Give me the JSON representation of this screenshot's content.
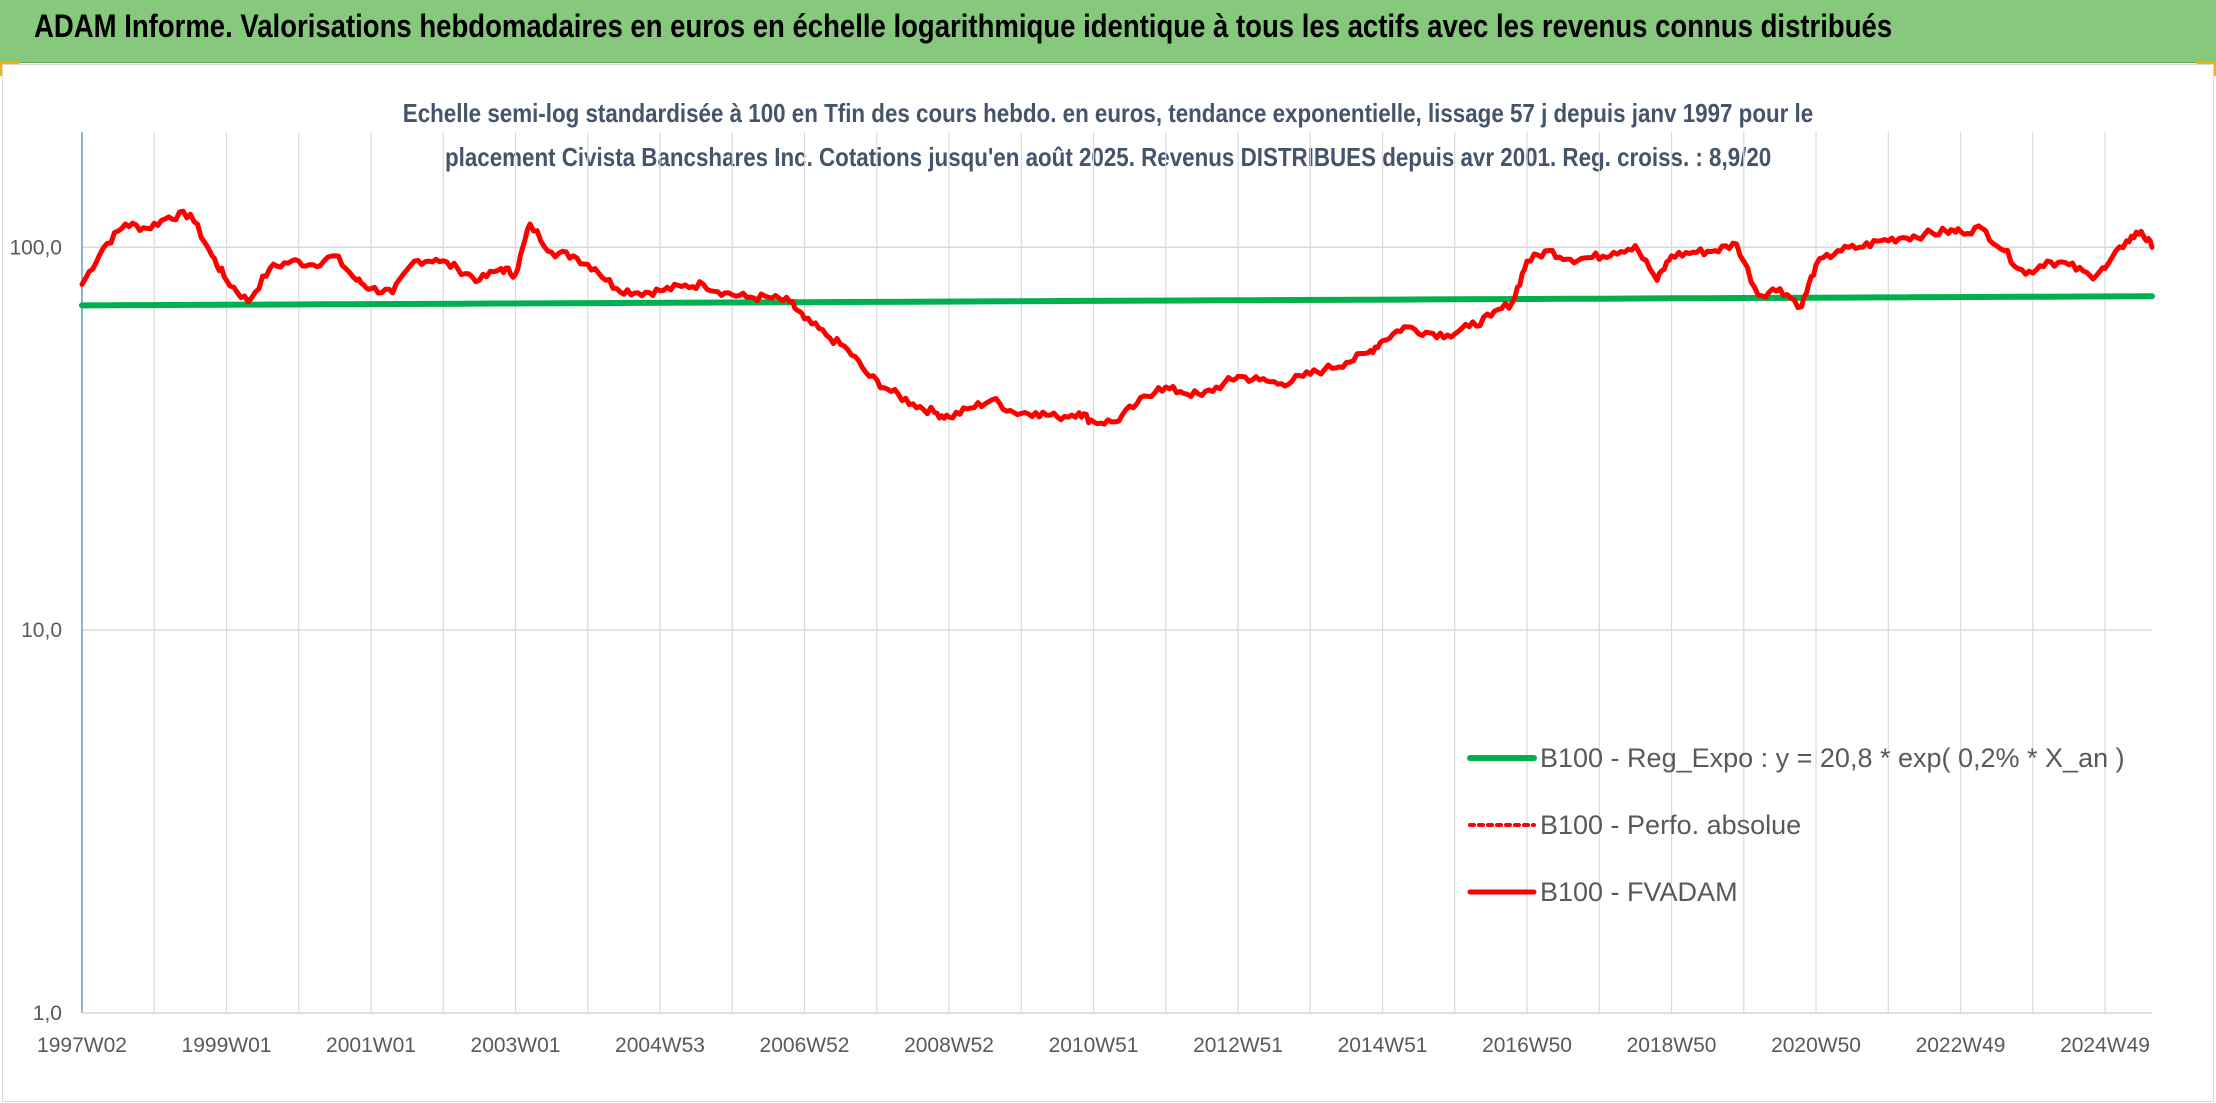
{
  "banner": {
    "title": "ADAM Informe. Valorisations hebdomadaires en euros en échelle logarithmique identique à tous les actifs avec les revenus connus distribués"
  },
  "colors": {
    "banner": "#86c97c",
    "corner_accent": "#f2b705",
    "trend_line": "#00b050",
    "fvadam_line": "#ff0000",
    "perfo_line": "#ff0000",
    "title_text": "#44546a",
    "grid": "#d9d9d9"
  },
  "chart_data": {
    "type": "line",
    "title_lines": [
      "Echelle semi-log standardisée à 100 en Tfin des cours hebdo. en euros, tendance exponentielle, lissage 57 j depuis janv 1997 pour le",
      "placement Civista Bancshares Inc. Cotations jusqu'en août 2025. Revenus DISTRIBUES depuis avr 2001. Reg. croiss. : 8,9/20"
    ],
    "yscale": "log",
    "ylim": [
      1,
      200
    ],
    "y_ticks": [
      {
        "value": 1,
        "label": "1,0"
      },
      {
        "value": 10,
        "label": "10,0"
      },
      {
        "value": 100,
        "label": "100,0"
      }
    ],
    "x_range": [
      1997.0,
      2025.65
    ],
    "x_ticks": [
      {
        "x": 1997.0,
        "label": "1997W02"
      },
      {
        "x": 1999.0,
        "label": "1999W01"
      },
      {
        "x": 2001.0,
        "label": "2001W01"
      },
      {
        "x": 2003.0,
        "label": "2003W01"
      },
      {
        "x": 2005.0,
        "label": "2004W53"
      },
      {
        "x": 2007.0,
        "label": "2006W52"
      },
      {
        "x": 2009.0,
        "label": "2008W52"
      },
      {
        "x": 2011.0,
        "label": "2010W51"
      },
      {
        "x": 2013.0,
        "label": "2012W51"
      },
      {
        "x": 2015.0,
        "label": "2014W51"
      },
      {
        "x": 2017.0,
        "label": "2016W50"
      },
      {
        "x": 2019.0,
        "label": "2018W50"
      },
      {
        "x": 2021.0,
        "label": "2020W50"
      },
      {
        "x": 2023.0,
        "label": "2022W49"
      },
      {
        "x": 2025.0,
        "label": "2024W49"
      }
    ],
    "grid": true,
    "legend_position": "bottom-right",
    "series": [
      {
        "name": "B100 - Reg_Expo : y = 20,8 * exp( 0,2% *  X_an )",
        "style": "solid-thick",
        "color": "#00b050",
        "x": [
          1997.0,
          2025.65
        ],
        "y": [
          70.5,
          74.5
        ]
      },
      {
        "name": "B100 - Perfo. absolue",
        "style": "dotted",
        "color": "#ff0000",
        "x": [],
        "y": []
      },
      {
        "name": "B100 - FVADAM",
        "style": "solid",
        "color": "#ff0000",
        "x": [
          1997.0,
          1997.3,
          1997.6,
          1997.9,
          1998.2,
          1998.5,
          1998.8,
          1999.0,
          1999.3,
          1999.6,
          1999.9,
          2000.2,
          2000.5,
          2000.8,
          2001.0,
          2001.3,
          2001.6,
          2001.9,
          2002.2,
          2002.5,
          2002.8,
          2003.0,
          2003.2,
          2003.5,
          2003.8,
          2004.1,
          2004.4,
          2004.7,
          2005.0,
          2005.3,
          2005.6,
          2005.9,
          2006.2,
          2006.5,
          2006.8,
          2007.0,
          2007.3,
          2007.6,
          2007.9,
          2008.2,
          2008.5,
          2008.8,
          2009.0,
          2009.3,
          2009.6,
          2009.9,
          2010.2,
          2010.5,
          2010.8,
          2011.0,
          2011.3,
          2011.6,
          2011.9,
          2012.2,
          2012.5,
          2012.8,
          2013.0,
          2013.3,
          2013.6,
          2013.9,
          2014.2,
          2014.5,
          2014.8,
          2015.0,
          2015.3,
          2015.6,
          2015.9,
          2016.2,
          2016.5,
          2016.8,
          2017.0,
          2017.3,
          2017.6,
          2017.9,
          2018.2,
          2018.5,
          2018.8,
          2019.0,
          2019.3,
          2019.6,
          2019.9,
          2020.2,
          2020.5,
          2020.8,
          2021.0,
          2021.3,
          2021.6,
          2021.9,
          2022.2,
          2022.5,
          2022.8,
          2023.0,
          2023.3,
          2023.6,
          2023.9,
          2024.2,
          2024.5,
          2024.8,
          2025.0,
          2025.3,
          2025.5,
          2025.65
        ],
        "y": [
          80,
          100,
          115,
          112,
          120,
          122,
          95,
          82,
          72,
          88,
          92,
          90,
          95,
          82,
          78,
          76,
          92,
          93,
          88,
          82,
          88,
          85,
          115,
          97,
          95,
          88,
          78,
          76,
          77,
          79,
          80,
          76,
          74,
          74,
          72,
          65,
          59,
          54,
          46,
          42,
          39,
          37,
          36,
          38,
          40,
          37,
          37,
          36,
          37,
          35,
          35,
          39,
          43,
          42,
          41,
          44,
          46,
          45,
          44,
          46,
          48,
          50,
          53,
          57,
          62,
          60,
          59,
          62,
          66,
          72,
          92,
          98,
          93,
          94,
          97,
          101,
          82,
          95,
          97,
          98,
          102,
          75,
          78,
          70,
          90,
          98,
          100,
          104,
          106,
          108,
          110,
          110,
          112,
          98,
          85,
          92,
          90,
          84,
          88,
          104,
          110,
          100
        ]
      }
    ]
  }
}
